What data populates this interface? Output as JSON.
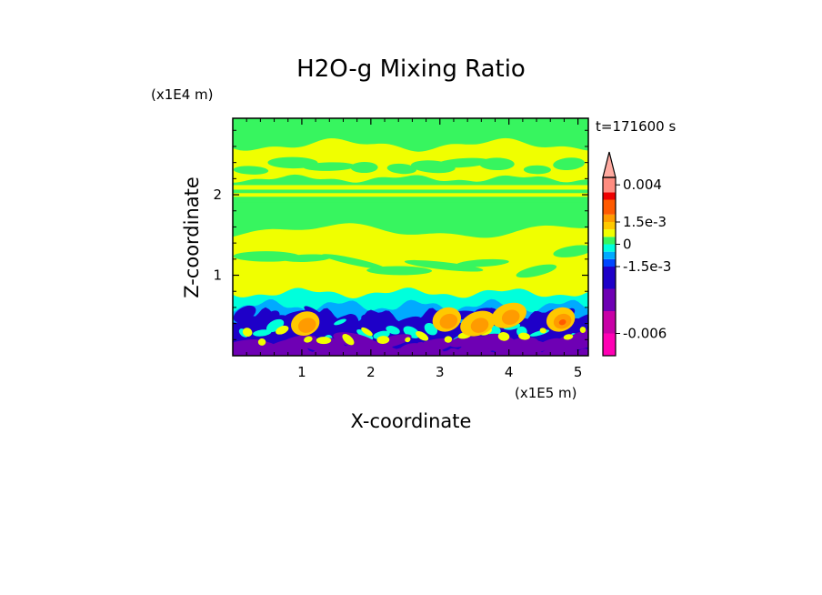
{
  "chart_data": {
    "type": "heatmap",
    "title": "H2O-g Mixing Ratio",
    "xlabel": "X-coordinate",
    "ylabel": "Z-coordinate",
    "x_unit": "(x1E5 m)",
    "y_unit": "(x1E4 m)",
    "time_label": "t=171600 s",
    "xlim": [
      0,
      5.15
    ],
    "ylim": [
      0,
      2.95
    ],
    "x_ticks": [
      1,
      2,
      3,
      4,
      5
    ],
    "y_ticks": [
      1,
      2
    ],
    "x_tick_labels": [
      "1",
      "2",
      "3",
      "4",
      "5"
    ],
    "y_tick_labels": [
      "1",
      "2"
    ],
    "colorbar": {
      "min": -0.0075,
      "max": 0.0045,
      "extend": "max",
      "levels": [
        {
          "lo": -0.0075,
          "hi": -0.006,
          "color": "#ff00b4"
        },
        {
          "lo": -0.006,
          "hi": -0.0045,
          "color": "#c800a6"
        },
        {
          "lo": -0.0045,
          "hi": -0.003,
          "color": "#6e00b4"
        },
        {
          "lo": -0.003,
          "hi": -0.0015,
          "color": "#1e00c8"
        },
        {
          "lo": -0.0015,
          "hi": -0.001,
          "color": "#0046ff"
        },
        {
          "lo": -0.001,
          "hi": -0.0005,
          "color": "#00aaff"
        },
        {
          "lo": -0.0005,
          "hi": 0.0,
          "color": "#00ffdc"
        },
        {
          "lo": 0.0,
          "hi": 0.0005,
          "color": "#37f55f"
        },
        {
          "lo": 0.0005,
          "hi": 0.001,
          "color": "#f0ff00"
        },
        {
          "lo": 0.001,
          "hi": 0.0015,
          "color": "#ffc800"
        },
        {
          "lo": 0.0015,
          "hi": 0.002,
          "color": "#ff9b00"
        },
        {
          "lo": 0.002,
          "hi": 0.003,
          "color": "#ff5a00"
        },
        {
          "lo": 0.003,
          "hi": 0.0035,
          "color": "#ee0000"
        },
        {
          "lo": 0.0035,
          "hi": 0.0045,
          "color": "#ff8c80"
        }
      ],
      "arrow_color": "#ffaaa0",
      "labels": [
        {
          "value": 0.004,
          "text": "0.004"
        },
        {
          "value": 0.0015,
          "text": "1.5e-3"
        },
        {
          "value": 0.0,
          "text": "0"
        },
        {
          "value": -0.0015,
          "text": "-1.5e-3"
        },
        {
          "value": -0.006,
          "text": "-0.006"
        }
      ]
    },
    "regions": [
      {
        "name": "lower-purple",
        "color": "#6e00b4",
        "z_range": [
          0,
          0.12
        ]
      },
      {
        "name": "lower-blue",
        "color": "#1e00c8",
        "z_range": [
          0.05,
          0.6
        ]
      },
      {
        "name": "lower-cyan",
        "color": "#00ffdc",
        "z_range": [
          0.5,
          0.8
        ]
      },
      {
        "name": "mid-yellow",
        "color": "#f0ff00",
        "z_range": [
          0.8,
          1.55
        ]
      },
      {
        "name": "mid-green",
        "color": "#37f55f",
        "z_range": [
          1.55,
          2.2
        ]
      },
      {
        "name": "upper-yellow",
        "color": "#f0ff00",
        "z_range": [
          2.2,
          2.6
        ]
      },
      {
        "name": "top-green",
        "color": "#37f55f",
        "z_range": [
          2.6,
          2.95
        ]
      }
    ]
  }
}
